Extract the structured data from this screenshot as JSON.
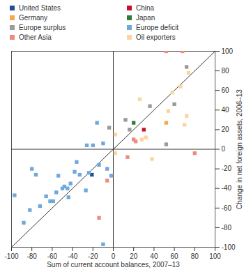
{
  "chart_data": {
    "type": "scatter",
    "xlabel": "Sum of current account balances, 2007–13",
    "ylabel": "Change in net foreign assets, 2006–13",
    "xlim": [
      -100,
      100
    ],
    "ylim": [
      -100,
      100
    ],
    "xticks": [
      -100,
      -80,
      -60,
      -40,
      -20,
      0,
      20,
      40,
      60,
      80,
      100
    ],
    "yticks": [
      -100,
      -80,
      -60,
      -40,
      -20,
      0,
      20,
      40,
      60,
      80,
      100
    ],
    "grid": false,
    "legend": "top",
    "series": [
      {
        "name": "United States",
        "color": "#1f4e96",
        "marker": "square",
        "values": [
          [
            -21,
            -26
          ]
        ]
      },
      {
        "name": "China",
        "color": "#c8102e",
        "marker": "square",
        "values": [
          [
            30,
            20
          ]
        ]
      },
      {
        "name": "Germany",
        "color": "#f7a84a",
        "marker": "square",
        "values": [
          [
            52,
            27
          ]
        ]
      },
      {
        "name": "Japan",
        "color": "#2e7d32",
        "marker": "square",
        "values": [
          [
            20,
            27
          ]
        ]
      },
      {
        "name": "Europe surplus",
        "color": "#9a9a9a",
        "marker": "square",
        "values": [
          [
            -4,
            22
          ],
          [
            12,
            30
          ],
          [
            16,
            20
          ],
          [
            36,
            44
          ],
          [
            52,
            5
          ],
          [
            60,
            46
          ],
          [
            72,
            84
          ]
        ]
      },
      {
        "name": "Europe deficit",
        "color": "#6fa8dc",
        "marker": "square",
        "values": [
          [
            -97,
            -47
          ],
          [
            -88,
            -75
          ],
          [
            -82,
            -62
          ],
          [
            -80,
            -20
          ],
          [
            -76,
            -26
          ],
          [
            -72,
            -58
          ],
          [
            -66,
            -48
          ],
          [
            -62,
            -53
          ],
          [
            -59,
            -53
          ],
          [
            -56,
            -44
          ],
          [
            -54,
            -27
          ],
          [
            -50,
            -40
          ],
          [
            -48,
            -38
          ],
          [
            -45,
            -40
          ],
          [
            -44,
            -49
          ],
          [
            -42,
            -35
          ],
          [
            -38,
            -23
          ],
          [
            -36,
            -13
          ],
          [
            -33,
            -26
          ],
          [
            -27,
            -42
          ],
          [
            -26,
            4
          ],
          [
            -24,
            -24
          ],
          [
            -20,
            4
          ],
          [
            -16,
            27
          ],
          [
            -14,
            -16
          ],
          [
            -10,
            6
          ],
          [
            -10,
            -97
          ],
          [
            -6,
            -20
          ],
          [
            -2,
            -27
          ]
        ]
      },
      {
        "name": "Other Asia",
        "color": "#ee8a7e",
        "marker": "square",
        "values": [
          [
            -14,
            -70
          ],
          [
            -6,
            -32
          ],
          [
            14,
            -8
          ],
          [
            20,
            10
          ],
          [
            22,
            8
          ],
          [
            52,
            100
          ],
          [
            68,
            100
          ],
          [
            80,
            -4
          ]
        ]
      },
      {
        "name": "Oil exporters",
        "color": "#fdd49e",
        "marker": "square",
        "values": [
          [
            2,
            15
          ],
          [
            2,
            -4
          ],
          [
            26,
            51
          ],
          [
            28,
            10
          ],
          [
            32,
            12
          ],
          [
            38,
            -10
          ],
          [
            54,
            39
          ],
          [
            58,
            58
          ],
          [
            66,
            64
          ],
          [
            70,
            25
          ],
          [
            72,
            34
          ],
          [
            74,
            78
          ]
        ]
      }
    ]
  }
}
